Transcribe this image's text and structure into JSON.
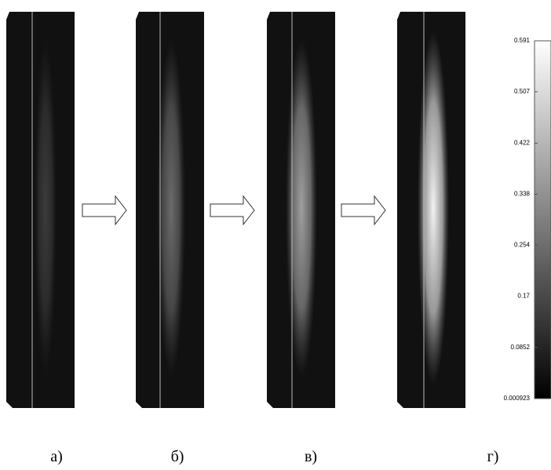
{
  "labels": [
    "а)",
    "б)",
    "в)",
    "г)"
  ],
  "colorbar": {
    "ticks": [
      0.591,
      0.507,
      0.422,
      0.338,
      0.254,
      0.17,
      0.0852,
      0.000923
    ]
  }
}
